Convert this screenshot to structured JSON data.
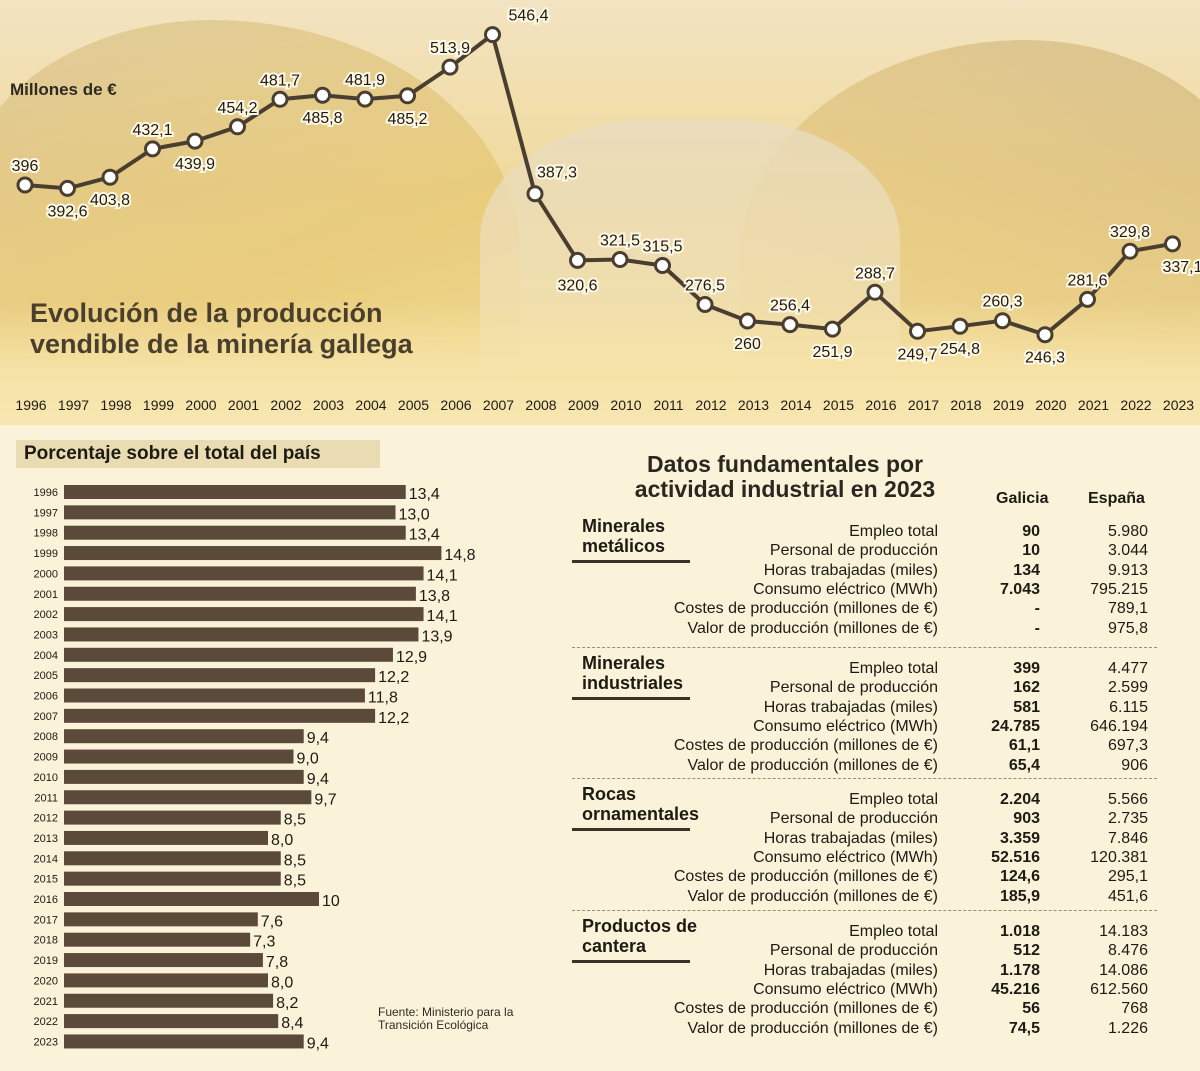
{
  "chart_data": [
    {
      "type": "line",
      "title": "Evolución de la producción vendible de la minería gallega",
      "ylabel": "Millones de €",
      "xlabel": "",
      "x": [
        "1996",
        "1997",
        "1998",
        "1999",
        "2000",
        "2001",
        "2002",
        "2003",
        "2004",
        "2005",
        "2006",
        "2007",
        "2008",
        "2009",
        "2010",
        "2011",
        "2012",
        "2013",
        "2014",
        "2015",
        "2016",
        "2017",
        "2018",
        "2019",
        "2020",
        "2021",
        "2022",
        "2023"
      ],
      "values": [
        396,
        392.6,
        403.8,
        432.1,
        439.9,
        454.2,
        481.7,
        485.8,
        481.9,
        485.2,
        513.9,
        546.4,
        387.3,
        320.6,
        321.5,
        315.5,
        276.5,
        260,
        256.4,
        251.9,
        288.7,
        249.7,
        254.8,
        260.3,
        246.3,
        281.6,
        329.8,
        337.1
      ],
      "data_labels": [
        "396",
        "392,6",
        "403,8",
        "432,1",
        "439,9",
        "454,2",
        "481,7",
        "485,8",
        "481,9",
        "485,2",
        "513,9",
        "546,4",
        "387,3",
        "320,6",
        "321,5",
        "315,5",
        "276,5",
        "260",
        "256,4",
        "251,9",
        "288,7",
        "249,7",
        "254,8",
        "260,3",
        "246,3",
        "281,6",
        "329,8",
        "337,1"
      ],
      "grid": false
    },
    {
      "type": "bar",
      "orientation": "horizontal",
      "title": "Porcentaje sobre el total del país",
      "categories": [
        "1996",
        "1997",
        "1998",
        "1999",
        "2000",
        "2001",
        "2002",
        "2003",
        "2004",
        "2005",
        "2006",
        "2007",
        "2008",
        "2009",
        "2010",
        "2011",
        "2012",
        "2013",
        "2014",
        "2015",
        "2016",
        "2017",
        "2018",
        "2019",
        "2020",
        "2021",
        "2022",
        "2023"
      ],
      "values": [
        13.4,
        13.0,
        13.4,
        14.8,
        14.1,
        13.8,
        14.1,
        13.9,
        12.9,
        12.2,
        11.8,
        12.2,
        9.4,
        9.0,
        9.4,
        9.7,
        8.5,
        8.0,
        8.5,
        8.5,
        10,
        7.6,
        7.3,
        7.8,
        8.0,
        8.2,
        8.4,
        9.4
      ],
      "data_labels": [
        "13,4",
        "13,0",
        "13,4",
        "14,8",
        "14,1",
        "13,8",
        "14,1",
        "13,9",
        "12,9",
        "12,2",
        "11,8",
        "12,2",
        "9,4",
        "9,0",
        "9,4",
        "9,7",
        "8,5",
        "8,0",
        "8,5",
        "8,5",
        "10",
        "7,6",
        "7,3",
        "7,8",
        "8,0",
        "8,2",
        "8,4",
        "9,4"
      ],
      "grid": false
    }
  ],
  "source": "Fuente: Ministerio para la Transición Ecológica",
  "table": {
    "title": "Datos fundamentales por actividad industrial en 2023",
    "col_galicia": "Galicia",
    "col_espana": "España",
    "blocks": [
      {
        "name": "Minerales metálicos",
        "rows": [
          {
            "label": "Empleo total",
            "galicia": "90",
            "espana": "5.980"
          },
          {
            "label": "Personal de producción",
            "galicia": "10",
            "espana": "3.044"
          },
          {
            "label": "Horas trabajadas (miles)",
            "galicia": "134",
            "espana": "9.913"
          },
          {
            "label": "Consumo eléctrico (MWh)",
            "galicia": "7.043",
            "espana": "795.215"
          },
          {
            "label": "Costes de producción (millones de €)",
            "galicia": "-",
            "espana": "789,1"
          },
          {
            "label": "Valor de producción (millones de €)",
            "galicia": "-",
            "espana": "975,8"
          }
        ]
      },
      {
        "name": "Minerales industriales",
        "rows": [
          {
            "label": "Empleo total",
            "galicia": "399",
            "espana": "4.477"
          },
          {
            "label": "Personal de producción",
            "galicia": "162",
            "espana": "2.599"
          },
          {
            "label": "Horas trabajadas (miles)",
            "galicia": "581",
            "espana": "6.115"
          },
          {
            "label": "Consumo eléctrico (MWh)",
            "galicia": "24.785",
            "espana": "646.194"
          },
          {
            "label": "Costes de producción (millones de €)",
            "galicia": "61,1",
            "espana": "697,3"
          },
          {
            "label": "Valor de producción (millones de €)",
            "galicia": "65,4",
            "espana": "906"
          }
        ]
      },
      {
        "name": "Rocas ornamentales",
        "rows": [
          {
            "label": "Empleo total",
            "galicia": "2.204",
            "espana": "5.566"
          },
          {
            "label": "Personal de producción",
            "galicia": "903",
            "espana": "2.735"
          },
          {
            "label": "Horas trabajadas (miles)",
            "galicia": "3.359",
            "espana": "7.846"
          },
          {
            "label": "Consumo eléctrico (MWh)",
            "galicia": "52.516",
            "espana": "120.381"
          },
          {
            "label": "Costes de producción (millones de €)",
            "galicia": "124,6",
            "espana": "295,1"
          },
          {
            "label": "Valor de producción (millones de €)",
            "galicia": "185,9",
            "espana": "451,6"
          }
        ]
      },
      {
        "name": "Productos de cantera",
        "rows": [
          {
            "label": "Empleo total",
            "galicia": "1.018",
            "espana": "14.183"
          },
          {
            "label": "Personal de producción",
            "galicia": "512",
            "espana": "8.476"
          },
          {
            "label": "Horas trabajadas (miles)",
            "galicia": "1.178",
            "espana": "14.086"
          },
          {
            "label": "Consumo eléctrico (MWh)",
            "galicia": "45.216",
            "espana": "612.560"
          },
          {
            "label": "Costes de producción (millones de €)",
            "galicia": "56",
            "espana": "768"
          },
          {
            "label": "Valor de producción (millones de €)",
            "galicia": "74,5",
            "espana": "1.226"
          }
        ]
      }
    ]
  },
  "colors": {
    "line": "#4a3e30",
    "bar": "#5b4a3a",
    "marker_fill": "#ffffff",
    "background": "#fbf3d9"
  }
}
